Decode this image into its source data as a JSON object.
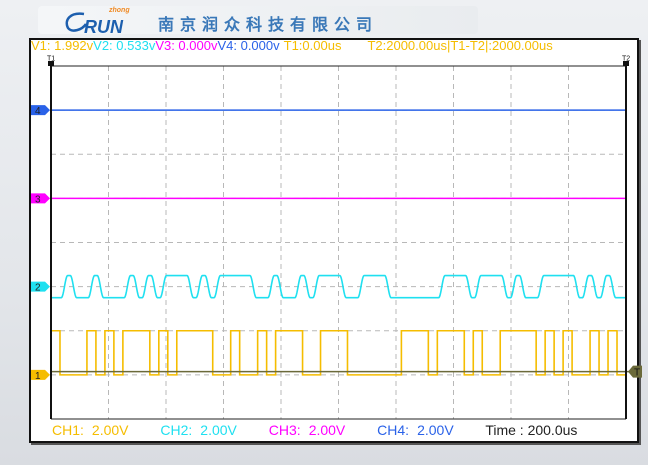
{
  "header": {
    "logo_brand": "RUN",
    "logo_sub": "zhong",
    "company": "南京润众科技有限公司"
  },
  "readout": {
    "v1": "V1: 1.992v",
    "v2": "V2: 0.533v",
    "v3": "V3: 0.000v",
    "v4": "V4: 0.000v",
    "t1": "T1:0.00us",
    "t2": "T2:2000.00us",
    "dt": "|T1-T2|:2000.00us"
  },
  "cursors": {
    "t1_label": "T1",
    "t2_label": "T2",
    "trigger_label": "T"
  },
  "channels": [
    {
      "id": "1",
      "label": "CH1:",
      "scale": "2.00V",
      "color": "#f5bd00"
    },
    {
      "id": "2",
      "label": "CH2:",
      "scale": "2.00V",
      "color": "#1fe0f0"
    },
    {
      "id": "3",
      "label": "CH3:",
      "scale": "2.00V",
      "color": "#ff00ff"
    },
    {
      "id": "4",
      "label": "CH4:",
      "scale": "2.00V",
      "color": "#2a62e8"
    }
  ],
  "timebase": "Time : 200.0us",
  "colors": {
    "grid": "#b8b8b8",
    "trigger": "#6b6a3a",
    "cursor": "#111111"
  },
  "chart_data": {
    "type": "line",
    "x_divisions": 10,
    "y_divisions": 8,
    "time_per_div_us": 200,
    "volts_per_div": 2.0,
    "x_range_us": [
      0,
      2000
    ],
    "grid": true,
    "series": [
      {
        "name": "CH1",
        "kind": "digital",
        "bits": [
          1,
          0,
          0,
          0,
          1,
          0,
          1,
          0,
          1,
          1,
          1,
          0,
          1,
          0,
          1,
          1,
          1,
          1,
          0,
          0,
          1,
          0,
          0,
          1,
          0,
          1,
          1,
          1,
          0,
          0,
          1,
          1,
          1,
          0,
          0,
          0,
          0,
          0,
          0,
          1,
          1,
          1,
          0,
          1,
          1,
          1,
          0,
          1,
          0,
          0,
          1,
          1,
          1,
          1,
          0,
          1,
          0,
          1,
          0,
          0,
          1,
          0,
          1,
          0
        ],
        "high_v": 2.0,
        "low_v": 0.0
      },
      {
        "name": "CH2",
        "kind": "filtered",
        "bits": [
          0,
          1,
          0,
          0,
          1,
          0,
          0,
          0,
          1,
          0,
          1,
          0,
          1,
          1,
          1,
          0,
          1,
          0,
          1,
          1,
          1,
          1,
          0,
          0,
          1,
          0,
          0,
          1,
          0,
          1,
          1,
          1,
          0,
          0,
          1,
          1,
          1,
          0,
          0,
          0,
          0,
          0,
          0,
          1,
          1,
          1,
          0,
          1,
          1,
          1,
          0,
          1,
          0,
          0,
          1,
          1,
          1,
          1,
          0,
          1,
          0,
          1,
          0,
          0
        ],
        "high_v": 0.5,
        "low_v": -0.5
      },
      {
        "name": "CH3",
        "kind": "flat",
        "value_v": 0.0
      },
      {
        "name": "CH4",
        "kind": "flat",
        "value_v": 0.0
      }
    ]
  }
}
